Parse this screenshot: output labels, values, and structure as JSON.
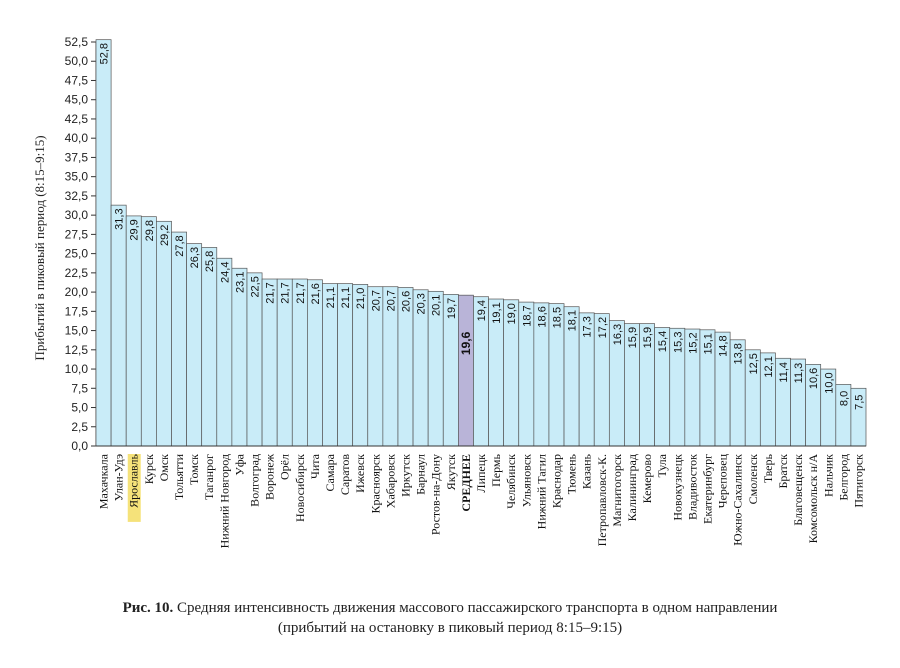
{
  "chart_data": {
    "type": "bar",
    "ylabel": "Прибытий в пиковый период (8:15–9:15)",
    "ylim": [
      0,
      52.5
    ],
    "ytick_step": 2.5,
    "grid": false,
    "categories": [
      "Махачкала",
      "Улан-Удэ",
      "Ярославль",
      "Курск",
      "Омск",
      "Тольятти",
      "Томск",
      "Таганрог",
      "Нижний Новгород",
      "Уфа",
      "Волгоград",
      "Воронеж",
      "Орёл",
      "Новосибирск",
      "Чита",
      "Самара",
      "Саратов",
      "Ижевск",
      "Красноярск",
      "Хабаровск",
      "Иркутск",
      "Барнаул",
      "Ростов-на-Дону",
      "Якутск",
      "СРЕДНЕЕ",
      "Липецк",
      "Пермь",
      "Челябинск",
      "Ульяновск",
      "Нижний Тагил",
      "Краснодар",
      "Тюмень",
      "Казань",
      "Петропавловск-К.",
      "Магнитогорск",
      "Калининград",
      "Кемерово",
      "Тула",
      "Новокузнецк",
      "Владивосток",
      "Екатеринбург",
      "Череповец",
      "Южно-Сахалинск",
      "Смоленск",
      "Тверь",
      "Братск",
      "Благовещенск",
      "Комсомольск н/А",
      "Нальчик",
      "Белгород",
      "Пятигорск"
    ],
    "values": [
      52.8,
      31.3,
      29.9,
      29.8,
      29.2,
      27.8,
      26.3,
      25.8,
      24.4,
      23.1,
      22.5,
      21.7,
      21.7,
      21.7,
      21.6,
      21.1,
      21.1,
      21.0,
      20.7,
      20.7,
      20.6,
      20.3,
      20.1,
      19.7,
      19.6,
      19.4,
      19.1,
      19.0,
      18.7,
      18.6,
      18.5,
      18.1,
      17.3,
      17.2,
      16.3,
      15.9,
      15.9,
      15.4,
      15.3,
      15.2,
      15.1,
      14.8,
      13.8,
      12.5,
      12.1,
      11.4,
      11.3,
      10.6,
      10.0,
      8.0,
      7.5
    ],
    "highlight_label": "Ярославль",
    "highlight_label_color": "#f5e27a",
    "average_label": "СРЕДНЕЕ",
    "bar_color": "#c9ecf8",
    "average_bar_color": "#b9b4d8",
    "bar_outline": "#555555",
    "decimal_separator": ","
  },
  "caption": {
    "prefix": "Рис.  10.",
    "line1": "Средняя интенсивность движения массового пассажирского транспорта в одном направлении",
    "line2": "(прибытий на остановку в пиковый период 8:15–9:15)"
  }
}
